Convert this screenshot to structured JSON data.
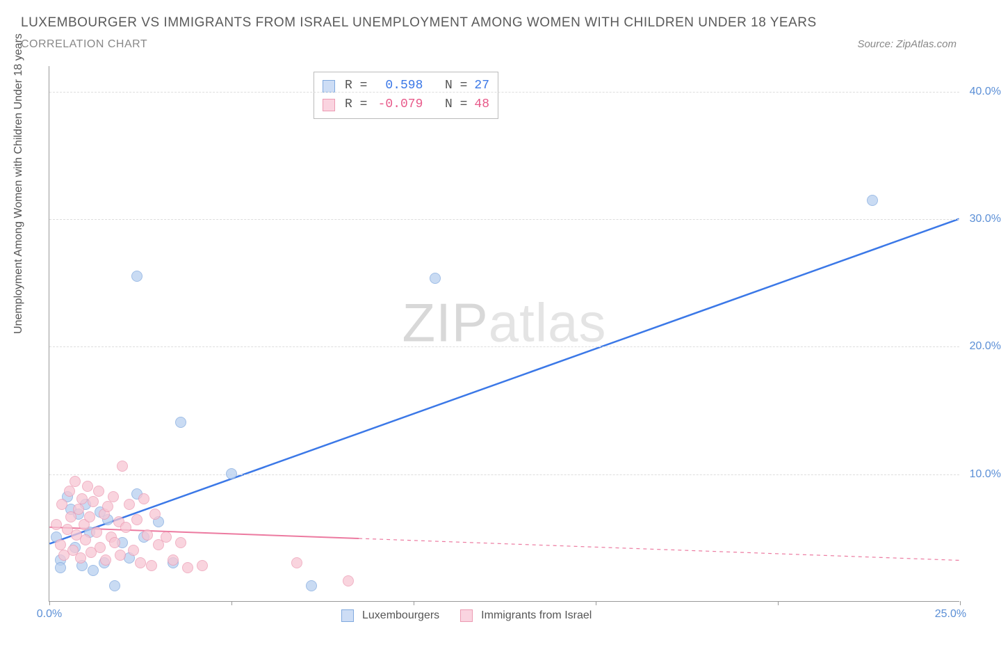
{
  "header": {
    "title": "LUXEMBOURGER VS IMMIGRANTS FROM ISRAEL UNEMPLOYMENT AMONG WOMEN WITH CHILDREN UNDER 18 YEARS",
    "subtitle": "CORRELATION CHART",
    "source": "Source: ZipAtlas.com"
  },
  "chart": {
    "type": "scatter",
    "ylabel": "Unemployment Among Women with Children Under 18 years",
    "xlim": [
      0,
      25
    ],
    "ylim": [
      0,
      42
    ],
    "xticks": [
      0,
      5,
      10,
      15,
      20,
      25
    ],
    "xtick_labels": [
      "0.0%",
      "",
      "",
      "",
      "",
      "25.0%"
    ],
    "yticks": [
      10,
      20,
      30,
      40
    ],
    "ytick_labels": [
      "10.0%",
      "20.0%",
      "30.0%",
      "40.0%"
    ],
    "grid_color": "#dddddd",
    "background_color": "#ffffff",
    "axis_color": "#999999",
    "tick_label_color": "#5b8fd6",
    "watermark": "ZIPatlas",
    "series": [
      {
        "name": "Luxembourgers",
        "color_fill": "#b8d0f0",
        "color_stroke": "#7fa8de",
        "swatch_fill": "#cdddf5",
        "swatch_stroke": "#7fa8de",
        "marker_size": 16,
        "stats": {
          "r": "0.598",
          "n": "27",
          "r_color": "#3b78e7",
          "n_color": "#3b78e7"
        },
        "trend": {
          "x1": 0,
          "y1": 4.5,
          "x2": 25,
          "y2": 30.0,
          "color": "#3b78e7",
          "width": 2.5,
          "solid_until_x": 25
        },
        "points": [
          {
            "x": 0.2,
            "y": 5.0
          },
          {
            "x": 0.3,
            "y": 3.2
          },
          {
            "x": 0.3,
            "y": 2.6
          },
          {
            "x": 0.5,
            "y": 8.2
          },
          {
            "x": 0.6,
            "y": 7.2
          },
          {
            "x": 0.7,
            "y": 4.2
          },
          {
            "x": 0.8,
            "y": 6.8
          },
          {
            "x": 0.9,
            "y": 2.8
          },
          {
            "x": 1.0,
            "y": 7.6
          },
          {
            "x": 1.1,
            "y": 5.4
          },
          {
            "x": 1.2,
            "y": 2.4
          },
          {
            "x": 1.4,
            "y": 7.0
          },
          {
            "x": 1.5,
            "y": 3.0
          },
          {
            "x": 1.6,
            "y": 6.4
          },
          {
            "x": 1.8,
            "y": 1.2
          },
          {
            "x": 2.0,
            "y": 4.6
          },
          {
            "x": 2.2,
            "y": 3.4
          },
          {
            "x": 2.4,
            "y": 8.4
          },
          {
            "x": 2.6,
            "y": 5.0
          },
          {
            "x": 3.0,
            "y": 6.2
          },
          {
            "x": 3.4,
            "y": 3.0
          },
          {
            "x": 3.6,
            "y": 14.0
          },
          {
            "x": 5.0,
            "y": 10.0
          },
          {
            "x": 7.2,
            "y": 1.2
          },
          {
            "x": 2.4,
            "y": 25.5
          },
          {
            "x": 10.6,
            "y": 25.3
          },
          {
            "x": 22.6,
            "y": 31.4
          }
        ]
      },
      {
        "name": "Immigrants from Israel",
        "color_fill": "#f7c6d4",
        "color_stroke": "#ec9ab2",
        "swatch_fill": "#fad4e0",
        "swatch_stroke": "#ec9ab2",
        "marker_size": 16,
        "stats": {
          "r": "-0.079",
          "n": "48",
          "r_color": "#e85a8a",
          "n_color": "#e85a8a"
        },
        "trend": {
          "x1": 0,
          "y1": 5.8,
          "x2": 25,
          "y2": 3.2,
          "color": "#ec7aa0",
          "width": 2,
          "solid_until_x": 8.5
        },
        "points": [
          {
            "x": 0.2,
            "y": 6.0
          },
          {
            "x": 0.3,
            "y": 4.4
          },
          {
            "x": 0.35,
            "y": 7.6
          },
          {
            "x": 0.4,
            "y": 3.6
          },
          {
            "x": 0.5,
            "y": 5.6
          },
          {
            "x": 0.55,
            "y": 8.6
          },
          {
            "x": 0.6,
            "y": 6.6
          },
          {
            "x": 0.65,
            "y": 4.0
          },
          {
            "x": 0.7,
            "y": 9.4
          },
          {
            "x": 0.75,
            "y": 5.2
          },
          {
            "x": 0.8,
            "y": 7.2
          },
          {
            "x": 0.85,
            "y": 3.4
          },
          {
            "x": 0.9,
            "y": 8.0
          },
          {
            "x": 0.95,
            "y": 6.0
          },
          {
            "x": 1.0,
            "y": 4.8
          },
          {
            "x": 1.05,
            "y": 9.0
          },
          {
            "x": 1.1,
            "y": 6.6
          },
          {
            "x": 1.15,
            "y": 3.8
          },
          {
            "x": 1.2,
            "y": 7.8
          },
          {
            "x": 1.3,
            "y": 5.4
          },
          {
            "x": 1.35,
            "y": 8.6
          },
          {
            "x": 1.4,
            "y": 4.2
          },
          {
            "x": 1.5,
            "y": 6.8
          },
          {
            "x": 1.55,
            "y": 3.2
          },
          {
            "x": 1.6,
            "y": 7.4
          },
          {
            "x": 1.7,
            "y": 5.0
          },
          {
            "x": 1.75,
            "y": 8.2
          },
          {
            "x": 1.8,
            "y": 4.6
          },
          {
            "x": 1.9,
            "y": 6.2
          },
          {
            "x": 1.95,
            "y": 3.6
          },
          {
            "x": 2.0,
            "y": 10.6
          },
          {
            "x": 2.1,
            "y": 5.8
          },
          {
            "x": 2.2,
            "y": 7.6
          },
          {
            "x": 2.3,
            "y": 4.0
          },
          {
            "x": 2.4,
            "y": 6.4
          },
          {
            "x": 2.5,
            "y": 3.0
          },
          {
            "x": 2.6,
            "y": 8.0
          },
          {
            "x": 2.7,
            "y": 5.2
          },
          {
            "x": 2.8,
            "y": 2.8
          },
          {
            "x": 2.9,
            "y": 6.8
          },
          {
            "x": 3.0,
            "y": 4.4
          },
          {
            "x": 3.2,
            "y": 5.0
          },
          {
            "x": 3.4,
            "y": 3.2
          },
          {
            "x": 3.6,
            "y": 4.6
          },
          {
            "x": 4.2,
            "y": 2.8
          },
          {
            "x": 6.8,
            "y": 3.0
          },
          {
            "x": 8.2,
            "y": 1.6
          },
          {
            "x": 3.8,
            "y": 2.6
          }
        ]
      }
    ],
    "legend_bottom": [
      {
        "label": "Luxembourgers",
        "swatch_fill": "#cdddf5",
        "swatch_stroke": "#7fa8de"
      },
      {
        "label": "Immigrants from Israel",
        "swatch_fill": "#fad4e0",
        "swatch_stroke": "#ec9ab2"
      }
    ]
  }
}
